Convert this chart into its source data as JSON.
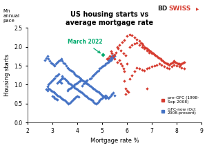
{
  "title": "US housing starts vs\naverage mortgage rate",
  "xlabel": "Mortgage rate %",
  "ylabel": "Housing starts",
  "ylabel2": "Mn\nannual\npace",
  "xlim": [
    2,
    9
  ],
  "ylim": [
    0,
    2.5
  ],
  "xticks": [
    2,
    3,
    4,
    5,
    6,
    7,
    8,
    9
  ],
  "yticks": [
    0.0,
    0.5,
    1.0,
    1.5,
    2.0,
    2.5
  ],
  "annotation_text": "March 2022",
  "annotation_color": "#00aa6e",
  "pre_gfc_color": "#d63b2f",
  "gfc_color": "#4472c4",
  "march2022_color": "#00aa6e",
  "legend_label1": "pre-GFC (1998-\nSep 2008)",
  "legend_label2": "GFC-now (Oct\n2008-present)",
  "march2022": [
    5.02,
    1.79
  ],
  "pre_gfc": [
    [
      5.94,
      1.77
    ],
    [
      5.85,
      1.82
    ],
    [
      5.75,
      1.9
    ],
    [
      5.65,
      1.95
    ],
    [
      5.6,
      2.0
    ],
    [
      5.7,
      2.05
    ],
    [
      5.8,
      2.12
    ],
    [
      5.9,
      2.18
    ],
    [
      6.0,
      2.28
    ],
    [
      6.1,
      2.32
    ],
    [
      6.2,
      2.3
    ],
    [
      6.3,
      2.25
    ],
    [
      6.4,
      2.2
    ],
    [
      6.5,
      2.15
    ],
    [
      6.55,
      2.1
    ],
    [
      6.6,
      2.08
    ],
    [
      6.65,
      2.05
    ],
    [
      6.7,
      2.0
    ],
    [
      6.75,
      1.98
    ],
    [
      6.8,
      1.95
    ],
    [
      6.85,
      1.92
    ],
    [
      6.9,
      1.9
    ],
    [
      6.95,
      1.88
    ],
    [
      7.0,
      1.85
    ],
    [
      7.05,
      1.82
    ],
    [
      7.1,
      1.8
    ],
    [
      7.15,
      1.78
    ],
    [
      7.2,
      1.75
    ],
    [
      7.25,
      1.72
    ],
    [
      7.3,
      1.7
    ],
    [
      7.35,
      1.68
    ],
    [
      7.4,
      1.65
    ],
    [
      7.45,
      1.62
    ],
    [
      7.5,
      1.6
    ],
    [
      7.55,
      1.58
    ],
    [
      7.6,
      1.55
    ],
    [
      7.65,
      1.55
    ],
    [
      7.7,
      1.52
    ],
    [
      7.75,
      1.55
    ],
    [
      7.8,
      1.58
    ],
    [
      7.85,
      1.6
    ],
    [
      7.9,
      1.62
    ],
    [
      7.95,
      1.6
    ],
    [
      8.0,
      1.58
    ],
    [
      8.05,
      1.55
    ],
    [
      8.1,
      1.55
    ],
    [
      8.15,
      1.52
    ],
    [
      8.2,
      1.55
    ],
    [
      8.25,
      1.58
    ],
    [
      8.3,
      1.6
    ],
    [
      6.1,
      2.0
    ],
    [
      6.2,
      2.05
    ],
    [
      6.3,
      2.08
    ],
    [
      6.4,
      2.1
    ],
    [
      6.5,
      2.05
    ],
    [
      6.6,
      2.0
    ],
    [
      6.7,
      1.95
    ],
    [
      6.8,
      1.9
    ],
    [
      6.9,
      1.85
    ],
    [
      7.0,
      1.82
    ],
    [
      5.55,
      1.85
    ],
    [
      5.5,
      1.8
    ],
    [
      5.45,
      1.75
    ],
    [
      5.4,
      1.82
    ],
    [
      5.35,
      1.88
    ],
    [
      5.3,
      1.75
    ],
    [
      5.25,
      1.7
    ],
    [
      5.2,
      1.68
    ],
    [
      5.75,
      1.55
    ],
    [
      5.8,
      1.5
    ],
    [
      5.85,
      1.42
    ],
    [
      5.9,
      1.35
    ],
    [
      5.95,
      0.9
    ],
    [
      6.0,
      0.85
    ],
    [
      6.05,
      0.8
    ],
    [
      5.9,
      1.1
    ],
    [
      6.1,
      1.15
    ],
    [
      6.2,
      1.25
    ],
    [
      6.3,
      1.35
    ],
    [
      6.4,
      1.45
    ],
    [
      6.5,
      1.42
    ],
    [
      6.6,
      1.4
    ],
    [
      6.7,
      1.38
    ],
    [
      6.8,
      1.42
    ],
    [
      6.9,
      1.45
    ],
    [
      7.0,
      1.48
    ],
    [
      7.1,
      1.5
    ],
    [
      7.2,
      1.52
    ],
    [
      7.3,
      1.55
    ],
    [
      7.4,
      1.52
    ],
    [
      7.5,
      1.48
    ],
    [
      7.6,
      1.45
    ],
    [
      7.7,
      1.42
    ],
    [
      7.8,
      1.48
    ],
    [
      7.9,
      1.52
    ],
    [
      8.0,
      1.5
    ],
    [
      8.1,
      1.48
    ],
    [
      8.2,
      1.45
    ],
    [
      8.3,
      1.42
    ],
    [
      5.7,
      1.65
    ],
    [
      5.6,
      1.6
    ],
    [
      5.5,
      1.68
    ],
    [
      6.0,
      1.55
    ],
    [
      6.8,
      0.9
    ],
    [
      5.95,
      0.75
    ]
  ],
  "gfc": [
    [
      2.7,
      1.65
    ],
    [
      2.75,
      1.7
    ],
    [
      2.8,
      1.75
    ],
    [
      2.85,
      1.68
    ],
    [
      2.9,
      1.62
    ],
    [
      2.95,
      1.58
    ],
    [
      3.0,
      1.55
    ],
    [
      3.05,
      1.52
    ],
    [
      3.1,
      1.5
    ],
    [
      3.15,
      1.55
    ],
    [
      3.2,
      1.6
    ],
    [
      3.25,
      1.62
    ],
    [
      3.3,
      1.65
    ],
    [
      3.35,
      1.68
    ],
    [
      3.4,
      1.62
    ],
    [
      3.45,
      1.58
    ],
    [
      3.5,
      1.55
    ],
    [
      3.55,
      1.5
    ],
    [
      3.6,
      1.45
    ],
    [
      3.65,
      1.42
    ],
    [
      3.7,
      1.4
    ],
    [
      3.75,
      1.38
    ],
    [
      3.8,
      1.35
    ],
    [
      3.85,
      1.32
    ],
    [
      3.9,
      1.28
    ],
    [
      3.95,
      1.25
    ],
    [
      4.0,
      1.22
    ],
    [
      4.05,
      1.2
    ],
    [
      4.1,
      1.18
    ],
    [
      4.15,
      1.15
    ],
    [
      4.2,
      1.12
    ],
    [
      4.25,
      1.1
    ],
    [
      4.3,
      1.08
    ],
    [
      4.35,
      1.05
    ],
    [
      4.4,
      1.02
    ],
    [
      4.45,
      1.0
    ],
    [
      4.5,
      0.98
    ],
    [
      4.55,
      0.95
    ],
    [
      4.6,
      0.92
    ],
    [
      4.65,
      0.9
    ],
    [
      4.7,
      0.88
    ],
    [
      4.75,
      0.85
    ],
    [
      4.8,
      0.82
    ],
    [
      4.85,
      0.8
    ],
    [
      4.9,
      0.78
    ],
    [
      4.95,
      0.75
    ],
    [
      5.0,
      0.72
    ],
    [
      5.05,
      0.7
    ],
    [
      5.1,
      0.68
    ],
    [
      5.15,
      0.65
    ],
    [
      3.4,
      1.22
    ],
    [
      3.45,
      1.18
    ],
    [
      3.5,
      1.15
    ],
    [
      3.55,
      1.12
    ],
    [
      3.6,
      1.08
    ],
    [
      3.65,
      1.05
    ],
    [
      3.7,
      1.02
    ],
    [
      3.75,
      1.0
    ],
    [
      3.8,
      0.98
    ],
    [
      3.85,
      0.95
    ],
    [
      3.9,
      0.92
    ],
    [
      3.95,
      0.9
    ],
    [
      4.0,
      0.88
    ],
    [
      4.05,
      0.85
    ],
    [
      4.1,
      0.82
    ],
    [
      4.15,
      0.8
    ],
    [
      4.2,
      0.78
    ],
    [
      4.25,
      0.75
    ],
    [
      4.3,
      0.72
    ],
    [
      4.35,
      0.7
    ],
    [
      4.4,
      0.68
    ],
    [
      4.45,
      0.65
    ],
    [
      4.5,
      0.62
    ],
    [
      4.55,
      0.6
    ],
    [
      4.6,
      0.58
    ],
    [
      4.65,
      0.55
    ],
    [
      4.7,
      0.52
    ],
    [
      4.75,
      0.5
    ],
    [
      4.8,
      0.52
    ],
    [
      4.85,
      0.55
    ],
    [
      4.9,
      0.58
    ],
    [
      4.95,
      0.62
    ],
    [
      5.0,
      0.65
    ],
    [
      5.05,
      0.68
    ],
    [
      5.1,
      0.7
    ],
    [
      5.15,
      0.72
    ],
    [
      5.2,
      0.68
    ],
    [
      5.25,
      0.65
    ],
    [
      5.3,
      0.68
    ],
    [
      5.35,
      0.72
    ],
    [
      5.4,
      0.75
    ],
    [
      5.45,
      0.78
    ],
    [
      5.5,
      0.72
    ],
    [
      3.3,
      1.08
    ],
    [
      3.35,
      1.05
    ],
    [
      3.2,
      1.05
    ],
    [
      3.25,
      1.08
    ],
    [
      3.3,
      1.12
    ],
    [
      3.35,
      1.15
    ],
    [
      3.4,
      1.18
    ],
    [
      2.85,
      1.0
    ],
    [
      2.9,
      1.05
    ],
    [
      2.95,
      1.08
    ],
    [
      3.0,
      1.12
    ],
    [
      3.05,
      1.15
    ],
    [
      3.1,
      1.18
    ],
    [
      3.15,
      1.22
    ],
    [
      3.2,
      1.25
    ],
    [
      3.25,
      1.28
    ],
    [
      2.8,
      0.95
    ],
    [
      2.85,
      0.9
    ],
    [
      2.9,
      0.88
    ],
    [
      2.95,
      0.85
    ],
    [
      3.0,
      0.82
    ],
    [
      3.05,
      0.8
    ],
    [
      3.1,
      0.78
    ],
    [
      3.15,
      0.75
    ],
    [
      3.2,
      0.72
    ],
    [
      3.25,
      0.7
    ],
    [
      3.3,
      0.68
    ],
    [
      3.35,
      0.65
    ],
    [
      3.4,
      0.62
    ],
    [
      3.45,
      0.6
    ],
    [
      3.5,
      0.58
    ],
    [
      3.55,
      0.55
    ],
    [
      3.6,
      0.52
    ],
    [
      3.65,
      0.5
    ],
    [
      3.7,
      0.52
    ],
    [
      3.75,
      0.55
    ],
    [
      3.8,
      0.58
    ],
    [
      3.85,
      0.62
    ],
    [
      3.9,
      0.65
    ],
    [
      3.95,
      0.68
    ],
    [
      4.0,
      0.7
    ],
    [
      4.05,
      0.68
    ],
    [
      4.5,
      1.15
    ],
    [
      4.55,
      1.18
    ],
    [
      4.6,
      1.22
    ],
    [
      4.65,
      1.25
    ],
    [
      4.7,
      1.28
    ],
    [
      4.75,
      1.32
    ],
    [
      4.8,
      1.35
    ],
    [
      4.85,
      1.38
    ],
    [
      4.9,
      1.42
    ],
    [
      4.95,
      1.45
    ],
    [
      5.0,
      1.48
    ],
    [
      5.05,
      1.5
    ],
    [
      5.1,
      1.52
    ],
    [
      5.15,
      1.55
    ],
    [
      5.2,
      1.58
    ],
    [
      5.25,
      1.6
    ],
    [
      5.3,
      1.62
    ],
    [
      5.35,
      1.65
    ],
    [
      5.4,
      1.68
    ],
    [
      5.45,
      1.72
    ],
    [
      5.5,
      1.75
    ],
    [
      4.4,
      1.12
    ],
    [
      4.35,
      1.1
    ],
    [
      4.3,
      1.05
    ],
    [
      4.25,
      1.02
    ],
    [
      4.2,
      0.98
    ],
    [
      3.6,
      0.85
    ],
    [
      3.65,
      0.88
    ],
    [
      3.7,
      0.9
    ],
    [
      3.75,
      0.92
    ],
    [
      3.8,
      0.95
    ],
    [
      3.85,
      0.98
    ],
    [
      3.9,
      1.0
    ],
    [
      3.95,
      1.02
    ],
    [
      4.0,
      1.05
    ],
    [
      4.05,
      1.08
    ],
    [
      4.1,
      1.1
    ],
    [
      4.15,
      1.12
    ],
    [
      2.75,
      0.88
    ],
    [
      2.8,
      0.85
    ],
    [
      5.45,
      1.78
    ],
    [
      5.4,
      1.75
    ],
    [
      5.35,
      1.72
    ],
    [
      5.3,
      1.68
    ],
    [
      5.25,
      1.65
    ],
    [
      3.0,
      0.7
    ],
    [
      3.05,
      0.68
    ],
    [
      3.1,
      0.65
    ],
    [
      3.15,
      0.62
    ],
    [
      3.2,
      0.6
    ]
  ]
}
